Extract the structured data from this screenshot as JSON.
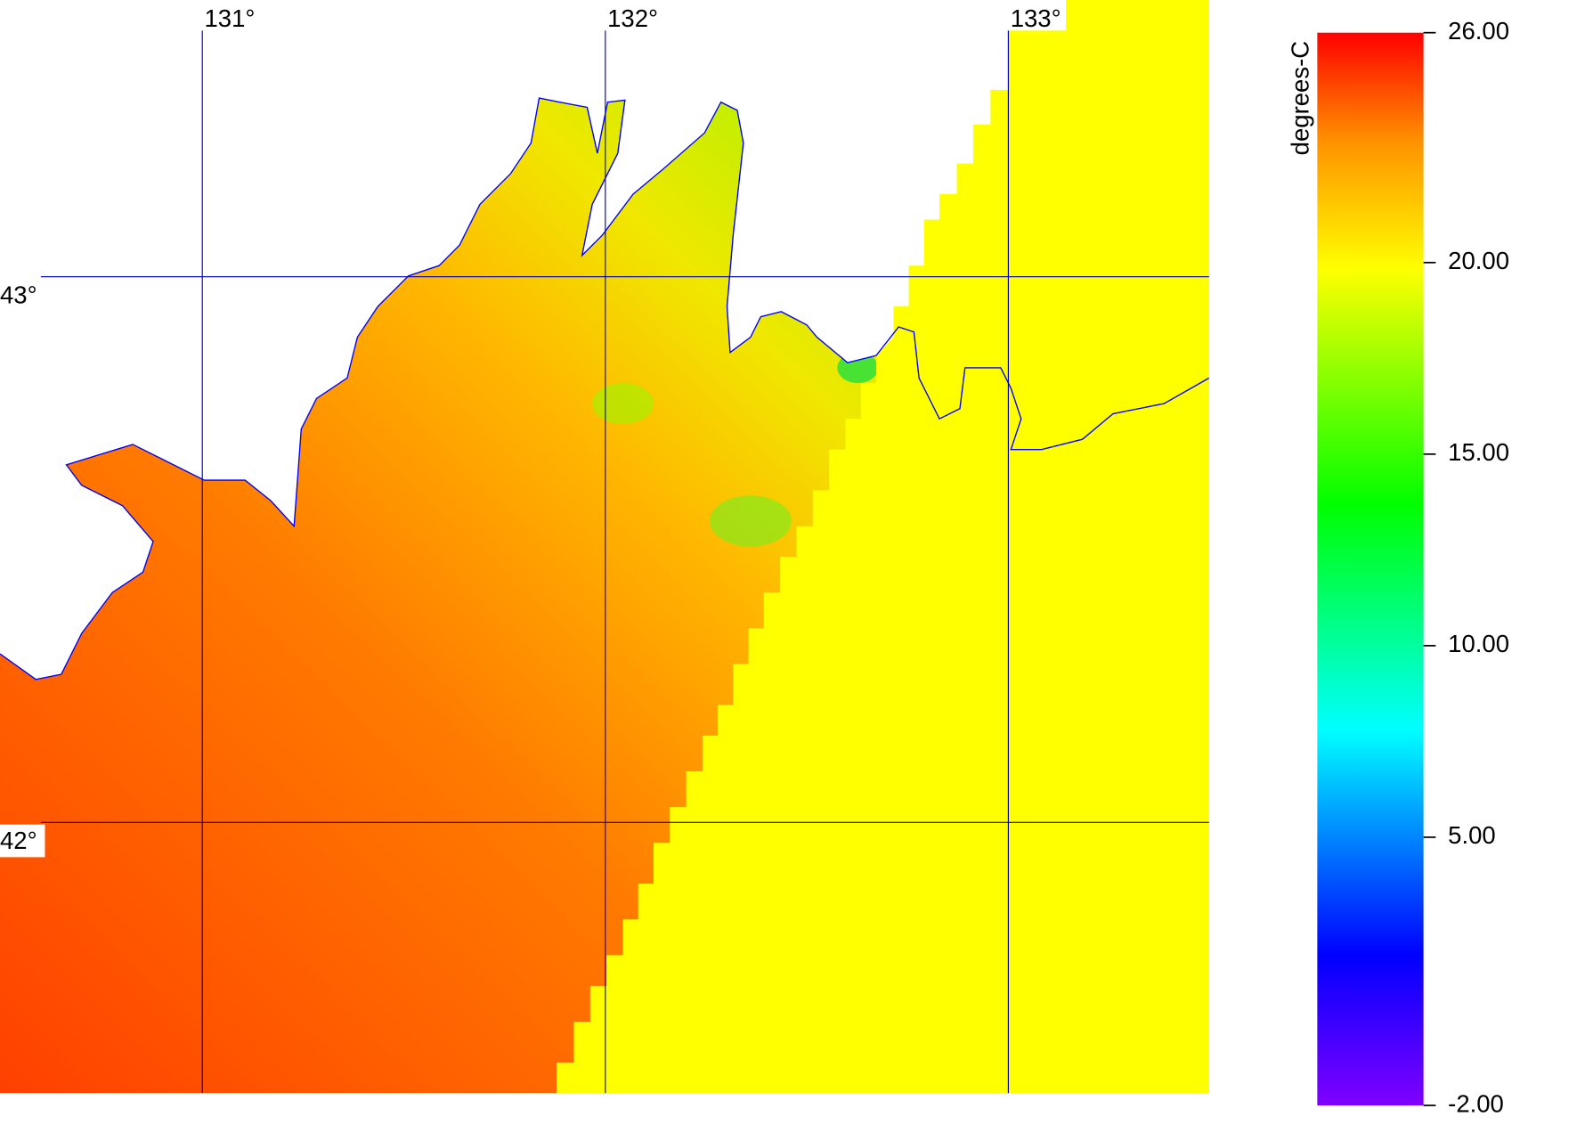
{
  "map": {
    "lonlim": [
      130.498,
      133.498
    ],
    "latlim": [
      41.504,
      43.507
    ],
    "lon_ticks": [
      {
        "value": 131,
        "label": "131°"
      },
      {
        "value": 132,
        "label": "132°"
      },
      {
        "value": 133,
        "label": "133°"
      }
    ],
    "lat_ticks": [
      {
        "value": 43,
        "label": "43°"
      },
      {
        "value": 42,
        "label": "42°"
      }
    ]
  },
  "colorbar": {
    "title": "degrees-C",
    "lim": [
      -2,
      26
    ],
    "ticks": [
      {
        "value": 26,
        "label": "26.00"
      },
      {
        "value": 20,
        "label": "20.00"
      },
      {
        "value": 15,
        "label": "15.00"
      },
      {
        "value": 10,
        "label": "10.00"
      },
      {
        "value": 5,
        "label": "5.00"
      },
      {
        "value": -2,
        "label": "-2.00"
      }
    ]
  }
}
